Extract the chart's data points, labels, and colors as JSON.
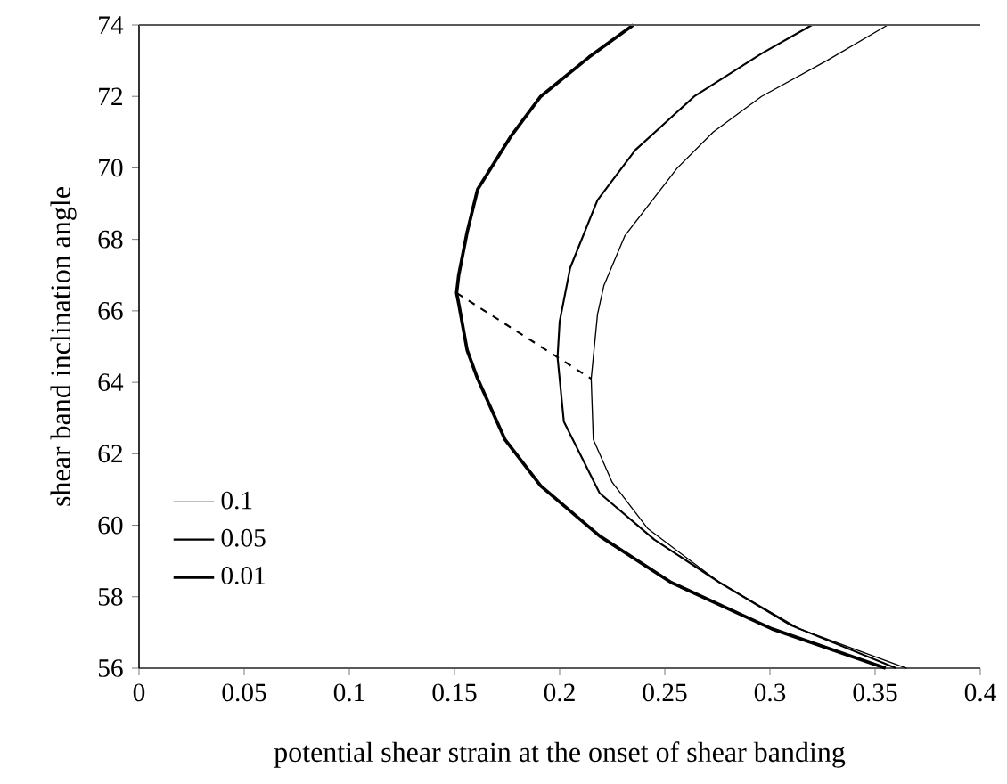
{
  "chart_data": {
    "type": "line",
    "xlabel": "potential shear strain at the onset of shear banding",
    "ylabel": "shear band inclination angle",
    "xlim": [
      0,
      0.4
    ],
    "ylim": [
      56,
      74
    ],
    "xticks": [
      0,
      0.05,
      0.1,
      0.15,
      0.2,
      0.25,
      0.3,
      0.35,
      0.4
    ],
    "yticks": [
      56,
      58,
      60,
      62,
      64,
      66,
      68,
      70,
      72,
      74
    ],
    "legend": "left",
    "grid": false,
    "series": [
      {
        "name": "0.1",
        "color": "#000000",
        "x": [
          0.365,
          0.314,
          0.276,
          0.242,
          0.225,
          0.216,
          0.215,
          0.218,
          0.221,
          0.231,
          0.256,
          0.273,
          0.296,
          0.327,
          0.356
        ],
        "values": [
          56,
          57.1,
          58.4,
          59.9,
          61.2,
          62.4,
          64.1,
          65.9,
          66.7,
          68.1,
          70,
          71,
          72,
          73,
          74
        ]
      },
      {
        "name": "0.05",
        "color": "#000000",
        "x": [
          0.36,
          0.31,
          0.276,
          0.245,
          0.219,
          0.202,
          0.199,
          0.2,
          0.205,
          0.218,
          0.236,
          0.264,
          0.296,
          0.32
        ],
        "values": [
          56,
          57.2,
          58.4,
          59.6,
          60.9,
          62.9,
          64.7,
          65.7,
          67.2,
          69.1,
          70.5,
          72,
          73.2,
          74
        ]
      },
      {
        "name": "0.01",
        "color": "#000000",
        "x": [
          0.355,
          0.301,
          0.253,
          0.219,
          0.191,
          0.174,
          0.161,
          0.156,
          0.152,
          0.151,
          0.152,
          0.156,
          0.161,
          0.177,
          0.191,
          0.214,
          0.235
        ],
        "values": [
          56,
          57.1,
          58.4,
          59.7,
          61.1,
          62.4,
          64.1,
          64.9,
          66.2,
          66.5,
          67,
          68.2,
          69.4,
          70.9,
          72,
          73.1,
          74
        ]
      },
      {
        "color": "#000000",
        "line_style": "dashed",
        "x": [
          0.151,
          0.215
        ],
        "values": [
          66.5,
          64.1
        ]
      }
    ]
  }
}
